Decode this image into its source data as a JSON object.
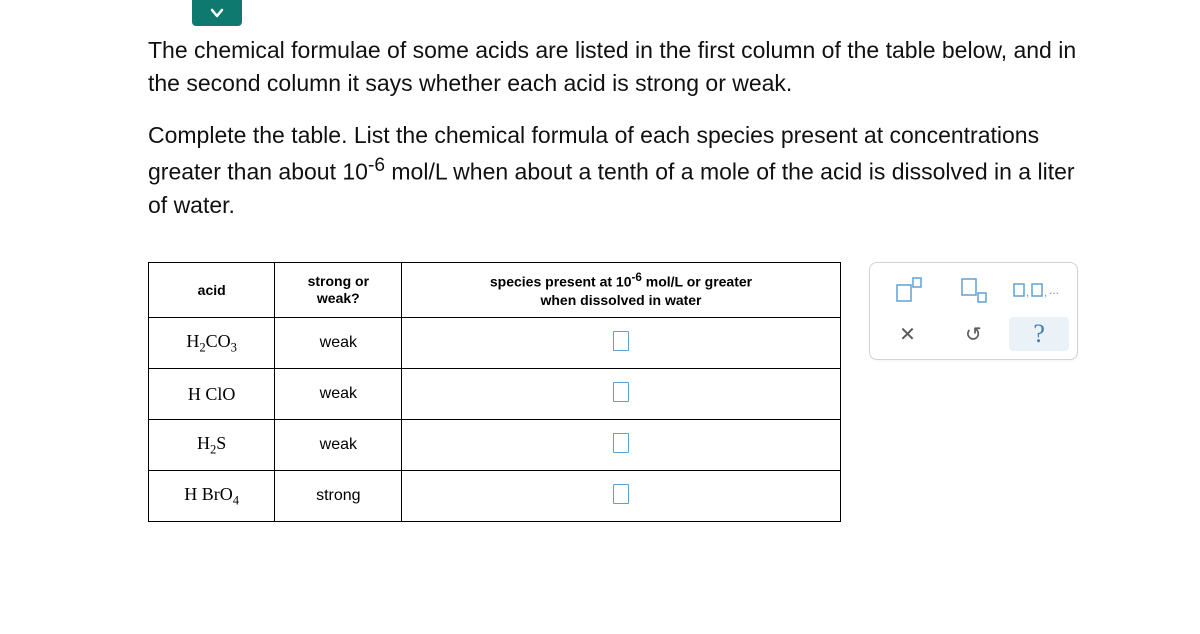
{
  "question": {
    "para1": "The chemical formulae of some acids are listed in the first column of the table below, and in the second column it says whether each acid is strong or weak.",
    "para2_prefix": "Complete the table. List the chemical formula of each species present at concentrations greater than about 10",
    "para2_exp": "-6",
    "para2_suffix": " mol/L when about a tenth of a mole of the acid is dissolved in a liter of water."
  },
  "table": {
    "headers": {
      "acid": "acid",
      "strength": "strong or\nweak?",
      "species_prefix": "species present at 10",
      "species_exp": "-6",
      "species_suffix": " mol/L or greater\nwhen dissolved in water"
    },
    "rows": [
      {
        "acid_html": "H<sub>2</sub>CO<sub>3</sub>",
        "strength": "weak"
      },
      {
        "acid_html": "H ClO",
        "strength": "weak"
      },
      {
        "acid_html": "H<sub>2</sub>S",
        "strength": "weak"
      },
      {
        "acid_html": "H BrO<sub>4</sub>",
        "strength": "strong"
      }
    ]
  },
  "toolbox": {
    "list_label": "▢,▢,..."
  },
  "colors": {
    "accent": "#0e7a6f",
    "input_border": "#5ea0d6",
    "help_bg": "#eaf1f7"
  }
}
